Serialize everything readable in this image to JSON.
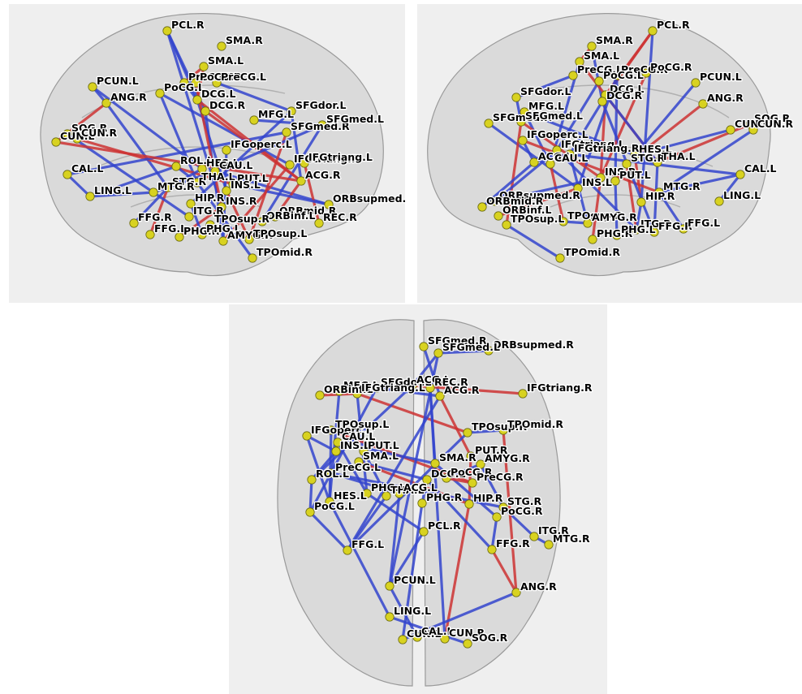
{
  "colors": {
    "background": "#efefef",
    "brain": "#c8c8c8",
    "node": "#d8d220",
    "edge_positive": "#cc3333",
    "edge_negative": "#3344cc"
  },
  "views": [
    {
      "id": "left",
      "nodes": [
        [
          "PCL.R",
          195,
          33
        ],
        [
          "SMA.R",
          262,
          52
        ],
        [
          "SMA.L",
          240,
          77
        ],
        [
          "PreCG.R",
          216,
          97
        ],
        [
          "PoCG.R",
          230,
          97
        ],
        [
          "PreCG.L",
          256,
          97
        ],
        [
          "PoCG.L",
          186,
          110
        ],
        [
          "PCUN.L",
          103,
          102
        ],
        [
          "ANG.R",
          120,
          122
        ],
        [
          "DCG.L",
          232,
          118
        ],
        [
          "DCG.R",
          242,
          132
        ],
        [
          "MFG.L",
          302,
          143
        ],
        [
          "SFGdor.L",
          348,
          132
        ],
        [
          "SOG.R",
          72,
          160
        ],
        [
          "CUN.L",
          58,
          170
        ],
        [
          "CUN.R",
          84,
          166
        ],
        [
          "SFGmed.R",
          342,
          158
        ],
        [
          "SFGmed.L",
          386,
          149
        ],
        [
          "IFGoperc.L",
          268,
          180
        ],
        [
          "ROL.L",
          206,
          200
        ],
        [
          "HES.L",
          238,
          203
        ],
        [
          "CAU.L",
          254,
          206
        ],
        [
          "IFGtriang.R",
          346,
          198
        ],
        [
          "IFGtriang.L",
          364,
          196
        ],
        [
          "STG.R",
          196,
          226
        ],
        [
          "THA.L",
          232,
          220
        ],
        [
          "ACG.R",
          360,
          218
        ],
        [
          "PUT.L",
          276,
          222
        ],
        [
          "INS.L",
          268,
          230
        ],
        [
          "CAL.L",
          72,
          210
        ],
        [
          "MTG.R",
          178,
          232
        ],
        [
          "INS.R",
          262,
          250
        ],
        [
          "HIP.R",
          224,
          246
        ],
        [
          "LING.L",
          100,
          237
        ],
        [
          "ORBmid.R",
          328,
          262
        ],
        [
          "ORBinf.L",
          312,
          268
        ],
        [
          "ORBsupmed.R",
          394,
          247
        ],
        [
          "REC.R",
          382,
          270
        ],
        [
          "FFG.R",
          154,
          270
        ],
        [
          "FFG.L",
          174,
          284
        ],
        [
          "ITG.R",
          222,
          262
        ],
        [
          "PHG.R",
          210,
          287
        ],
        [
          "TPOsup.R",
          248,
          272
        ],
        [
          "PHG.L",
          238,
          284
        ],
        [
          "AMYG.R",
          264,
          292
        ],
        [
          "TPOsup.L",
          296,
          290
        ],
        [
          "TPOmid.R",
          300,
          313
        ]
      ],
      "edges": [
        [
          0,
          9,
          0
        ],
        [
          0,
          10,
          0
        ],
        [
          2,
          9,
          1
        ],
        [
          2,
          3,
          1
        ],
        [
          3,
          9,
          0
        ],
        [
          5,
          12,
          0
        ],
        [
          6,
          22,
          0
        ],
        [
          6,
          25,
          0
        ],
        [
          7,
          8,
          0
        ],
        [
          7,
          20,
          0
        ],
        [
          8,
          14,
          1
        ],
        [
          8,
          24,
          0
        ],
        [
          9,
          28,
          0
        ],
        [
          10,
          26,
          1
        ],
        [
          11,
          17,
          0
        ],
        [
          12,
          26,
          0
        ],
        [
          13,
          30,
          0
        ],
        [
          15,
          27,
          1
        ],
        [
          16,
          29,
          0
        ],
        [
          17,
          35,
          0
        ],
        [
          18,
          44,
          0
        ],
        [
          19,
          25,
          0
        ],
        [
          19,
          33,
          0
        ],
        [
          20,
          24,
          0
        ],
        [
          21,
          36,
          0
        ],
        [
          22,
          44,
          1
        ],
        [
          23,
          37,
          1
        ],
        [
          24,
          39,
          1
        ],
        [
          25,
          46,
          0
        ],
        [
          26,
          34,
          1
        ],
        [
          27,
          36,
          0
        ],
        [
          28,
          45,
          1
        ],
        [
          29,
          33,
          0
        ],
        [
          30,
          40,
          0
        ],
        [
          31,
          41,
          1
        ],
        [
          32,
          43,
          0
        ],
        [
          33,
          30,
          0
        ],
        [
          34,
          35,
          1
        ],
        [
          38,
          24,
          0
        ],
        [
          9,
          26,
          1
        ],
        [
          0,
          31,
          0
        ],
        [
          14,
          26,
          1
        ],
        [
          10,
          44,
          0
        ],
        [
          4,
          31,
          1
        ],
        [
          16,
          45,
          1
        ],
        [
          17,
          21,
          0
        ],
        [
          30,
          21,
          0
        ],
        [
          12,
          32,
          0
        ]
      ]
    },
    {
      "id": "right",
      "nodes": [
        [
          "PCL.R",
          290,
          33
        ],
        [
          "SMA.R",
          215,
          52
        ],
        [
          "SMA.L",
          200,
          71
        ],
        [
          "PreCG.R",
          246,
          88
        ],
        [
          "PoCG.R",
          282,
          85
        ],
        [
          "PreCG.L",
          192,
          88
        ],
        [
          "PoCG.L",
          224,
          95
        ],
        [
          "PCUN.L",
          343,
          97
        ],
        [
          "DCG.L",
          232,
          112
        ],
        [
          "DCG.R",
          228,
          120
        ],
        [
          "SFGdor.L",
          122,
          115
        ],
        [
          "MFG.L",
          132,
          133
        ],
        [
          "ANG.R",
          352,
          123
        ],
        [
          "SFGmed.R",
          88,
          147
        ],
        [
          "SFGmed.L",
          128,
          145
        ],
        [
          "SOG.R",
          410,
          148
        ],
        [
          "CUN.L",
          386,
          155
        ],
        [
          "CUN.R",
          414,
          155
        ],
        [
          "IFGoperc.L",
          130,
          168
        ],
        [
          "IFGtriang.L",
          172,
          180
        ],
        [
          "IFGtriang.R",
          188,
          185
        ],
        [
          "HES.L",
          268,
          186
        ],
        [
          "STG.R",
          258,
          197
        ],
        [
          "THA.L",
          296,
          195
        ],
        [
          "ACG.L",
          144,
          195
        ],
        [
          "CAU.L",
          164,
          197
        ],
        [
          "INS.R",
          226,
          214
        ],
        [
          "PUT.L",
          244,
          218
        ],
        [
          "MTG.R",
          298,
          232
        ],
        [
          "CAL.L",
          398,
          210
        ],
        [
          "INS.L",
          198,
          227
        ],
        [
          "HIP.R",
          276,
          244
        ],
        [
          "LING.L",
          372,
          243
        ],
        [
          "ORBsupmed.R",
          96,
          243
        ],
        [
          "ORBinf.L",
          100,
          261
        ],
        [
          "ORBmid.R",
          80,
          250
        ],
        [
          "TPOsup.L",
          110,
          272
        ],
        [
          "TPOsup.R",
          180,
          268
        ],
        [
          "AMYG.R",
          210,
          270
        ],
        [
          "ITG.R",
          270,
          278
        ],
        [
          "PHG.R",
          216,
          290
        ],
        [
          "PHG.L",
          246,
          285
        ],
        [
          "FFG.R",
          292,
          281
        ],
        [
          "FFG.L",
          328,
          277
        ],
        [
          "TPOmid.R",
          176,
          313
        ]
      ],
      "edges": [
        [
          0,
          8,
          1
        ],
        [
          0,
          9,
          1
        ],
        [
          1,
          2,
          1
        ],
        [
          1,
          9,
          0
        ],
        [
          2,
          25,
          0
        ],
        [
          3,
          27,
          0
        ],
        [
          4,
          26,
          1
        ],
        [
          5,
          10,
          0
        ],
        [
          6,
          19,
          0
        ],
        [
          7,
          21,
          0
        ],
        [
          8,
          26,
          1
        ],
        [
          9,
          20,
          0
        ],
        [
          10,
          14,
          0
        ],
        [
          11,
          25,
          0
        ],
        [
          12,
          22,
          1
        ],
        [
          13,
          30,
          0
        ],
        [
          14,
          36,
          1
        ],
        [
          15,
          23,
          1
        ],
        [
          16,
          21,
          0
        ],
        [
          17,
          28,
          0
        ],
        [
          18,
          24,
          0
        ],
        [
          19,
          33,
          0
        ],
        [
          20,
          38,
          0
        ],
        [
          21,
          31,
          1
        ],
        [
          22,
          39,
          1
        ],
        [
          23,
          42,
          0
        ],
        [
          24,
          35,
          0
        ],
        [
          25,
          37,
          1
        ],
        [
          26,
          40,
          1
        ],
        [
          27,
          41,
          0
        ],
        [
          28,
          43,
          0
        ],
        [
          29,
          32,
          0
        ],
        [
          30,
          34,
          1
        ],
        [
          31,
          39,
          0
        ],
        [
          33,
          26,
          0
        ],
        [
          36,
          44,
          0
        ],
        [
          37,
          38,
          0
        ],
        [
          2,
          23,
          1
        ],
        [
          0,
          31,
          0
        ],
        [
          8,
          23,
          0
        ],
        [
          11,
          21,
          0
        ],
        [
          18,
          28,
          1
        ],
        [
          20,
          29,
          0
        ],
        [
          3,
          30,
          0
        ],
        [
          9,
          42,
          0
        ],
        [
          19,
          39,
          0
        ],
        [
          14,
          26,
          1
        ],
        [
          28,
          29,
          0
        ]
      ]
    },
    {
      "id": "top",
      "nodes": [
        [
          "ORBsupmed.R",
          320,
          57
        ],
        [
          "SFGmed.R",
          240,
          52
        ],
        [
          "SFGmed.L",
          258,
          60
        ],
        [
          "MFG.L",
          136,
          107
        ],
        [
          "ORBinf.L",
          112,
          112
        ],
        [
          "SFGdor.L",
          182,
          103
        ],
        [
          "IFGtriang.L",
          158,
          110
        ],
        [
          "ACG.L",
          226,
          100
        ],
        [
          "REC.R",
          248,
          103
        ],
        [
          "ACG.R",
          260,
          113
        ],
        [
          "IFGtriang.R",
          362,
          110
        ],
        [
          "IFGoperc.L",
          96,
          162
        ],
        [
          "TPOsup.L",
          126,
          155
        ],
        [
          "TPOsup.R",
          294,
          158
        ],
        [
          "TPOmid.R",
          338,
          155
        ],
        [
          "CAU.L",
          134,
          170
        ],
        [
          "INS.L",
          132,
          181
        ],
        [
          "PUT.L",
          166,
          181
        ],
        [
          "SMA.L",
          160,
          194
        ],
        [
          "PUT.R",
          298,
          187
        ],
        [
          "AMYG.R",
          310,
          197
        ],
        [
          "SMA.R",
          254,
          196
        ],
        [
          "ROL.L",
          102,
          216
        ],
        [
          "PreCG.L",
          126,
          208
        ],
        [
          "DCG.L",
          244,
          216
        ],
        [
          "PoCG.R",
          268,
          214
        ],
        [
          "PreCG.R",
          300,
          220
        ],
        [
          "PHG.L",
          170,
          233
        ],
        [
          "THA.L",
          194,
          236
        ],
        [
          "ACG.L",
          210,
          233
        ],
        [
          "HES.L",
          124,
          243
        ],
        [
          "PHG.R",
          238,
          245
        ],
        [
          "HIP.R",
          296,
          246
        ],
        [
          "PoCG.L",
          100,
          256
        ],
        [
          "STG.R",
          338,
          250
        ],
        [
          "PoCG.R",
          330,
          262
        ],
        [
          "PCL.R",
          240,
          280
        ],
        [
          "ITG.R",
          376,
          286
        ],
        [
          "FFG.L",
          146,
          303
        ],
        [
          "MTG.R",
          394,
          296
        ],
        [
          "FFG.R",
          324,
          302
        ],
        [
          "PCUN.L",
          198,
          347
        ],
        [
          "ANG.R",
          354,
          355
        ],
        [
          "LING.L",
          198,
          385
        ],
        [
          "CUN.L",
          214,
          413
        ],
        [
          "CAL.L",
          232,
          410
        ],
        [
          "CUN.R",
          266,
          412
        ],
        [
          "SOG.R",
          294,
          418
        ]
      ],
      "edges": [
        [
          0,
          2,
          0
        ],
        [
          1,
          9,
          0
        ],
        [
          2,
          7,
          0
        ],
        [
          3,
          5,
          0
        ],
        [
          4,
          6,
          1
        ],
        [
          5,
          9,
          0
        ],
        [
          6,
          13,
          1
        ],
        [
          7,
          10,
          1
        ],
        [
          8,
          21,
          0
        ],
        [
          9,
          19,
          1
        ],
        [
          11,
          16,
          0
        ],
        [
          12,
          30,
          0
        ],
        [
          13,
          14,
          0
        ],
        [
          15,
          27,
          0
        ],
        [
          16,
          22,
          0
        ],
        [
          17,
          28,
          0
        ],
        [
          18,
          24,
          0
        ],
        [
          19,
          32,
          1
        ],
        [
          20,
          25,
          0
        ],
        [
          21,
          35,
          0
        ],
        [
          22,
          33,
          0
        ],
        [
          23,
          29,
          0
        ],
        [
          24,
          31,
          0
        ],
        [
          25,
          26,
          1
        ],
        [
          27,
          36,
          0
        ],
        [
          28,
          38,
          0
        ],
        [
          29,
          41,
          0
        ],
        [
          30,
          43,
          0
        ],
        [
          31,
          44,
          0
        ],
        [
          32,
          46,
          1
        ],
        [
          33,
          38,
          0
        ],
        [
          34,
          37,
          0
        ],
        [
          35,
          40,
          0
        ],
        [
          36,
          41,
          0
        ],
        [
          37,
          39,
          0
        ],
        [
          40,
          42,
          1
        ],
        [
          41,
          45,
          0
        ],
        [
          42,
          44,
          0
        ],
        [
          43,
          47,
          0
        ],
        [
          3,
          30,
          0
        ],
        [
          5,
          33,
          0
        ],
        [
          6,
          27,
          0
        ],
        [
          11,
          30,
          0
        ],
        [
          12,
          26,
          1
        ],
        [
          18,
          32,
          1
        ],
        [
          23,
          34,
          0
        ],
        [
          7,
          22,
          0
        ],
        [
          9,
          38,
          0
        ],
        [
          2,
          41,
          0
        ],
        [
          14,
          42,
          1
        ],
        [
          15,
          21,
          0
        ],
        [
          8,
          46,
          0
        ],
        [
          24,
          40,
          0
        ],
        [
          20,
          34,
          0
        ],
        [
          13,
          38,
          0
        ]
      ]
    }
  ]
}
